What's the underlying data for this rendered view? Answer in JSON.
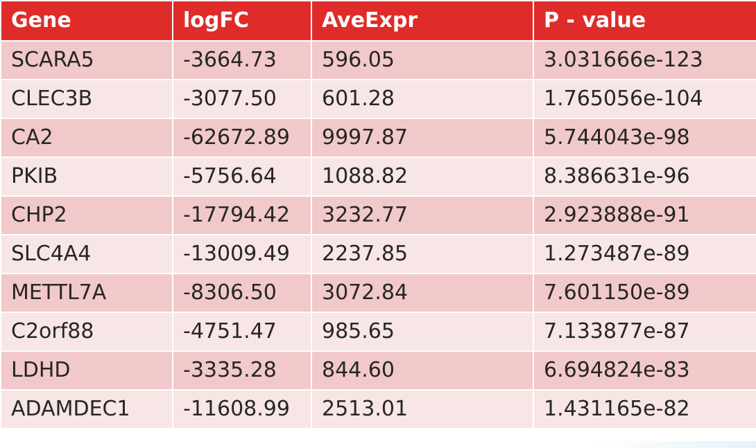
{
  "table": {
    "headers": [
      "Gene",
      "logFC",
      "AveExpr",
      "P - value"
    ],
    "rows": [
      [
        "SCARA5",
        "-3664.73",
        "596.05",
        "3.031666e-123"
      ],
      [
        "CLEC3B",
        "-3077.50",
        "601.28",
        "1.765056e-104"
      ],
      [
        "CA2",
        "-62672.89",
        "9997.87",
        "5.744043e-98"
      ],
      [
        "PKIB",
        "-5756.64",
        "1088.82",
        "8.386631e-96"
      ],
      [
        "CHP2",
        "-17794.42",
        "3232.77",
        "2.923888e-91"
      ],
      [
        "SLC4A4",
        "-13009.49",
        "2237.85",
        "1.273487e-89"
      ],
      [
        "METTL7A",
        "-8306.50",
        "3072.84",
        "7.601150e-89"
      ],
      [
        "C2orf88",
        "-4751.47",
        "985.65",
        "7.133877e-87"
      ],
      [
        "LDHD",
        "-3335.28",
        "844.60",
        "6.694824e-83"
      ],
      [
        "ADAMDEC1",
        "-11608.99",
        "2513.01",
        "1.431165e-82"
      ]
    ]
  },
  "colors": {
    "header_bg": "#df2c2a",
    "row_odd_bg": "#f1c9ca",
    "row_even_bg": "#f8e5e5",
    "text": "#262626"
  }
}
